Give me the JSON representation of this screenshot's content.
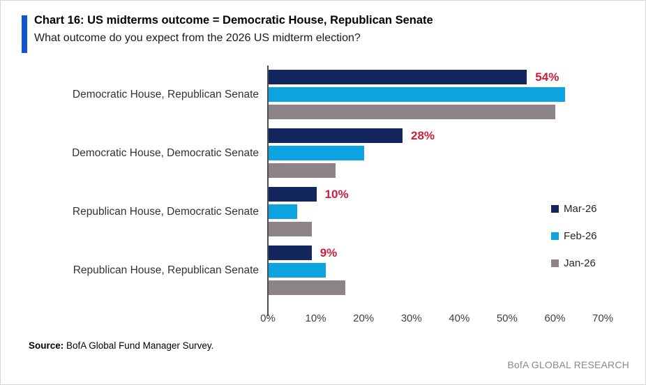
{
  "header": {
    "title": "Chart 16: US midterms outcome = Democratic House, Republican Senate",
    "subtitle": "What outcome do you expect from the 2026 US midterm election?"
  },
  "chart_data": {
    "type": "bar",
    "orientation": "horizontal",
    "title": "Chart 16: US midterms outcome = Democratic House, Republican Senate",
    "subtitle": "What outcome do you expect from the 2026 US midterm election?",
    "categories": [
      "Democratic House, Republican Senate",
      "Democratic House, Democratic Senate",
      "Republican House, Democratic Senate",
      "Republican House, Republican Senate"
    ],
    "series": [
      {
        "name": "Mar-26",
        "color": "#14265e",
        "values": [
          54,
          28,
          10,
          9
        ],
        "show_value_labels": true
      },
      {
        "name": "Feb-26",
        "color": "#0da2e0",
        "values": [
          62,
          20,
          6,
          12
        ],
        "show_value_labels": false
      },
      {
        "name": "Jan-26",
        "color": "#8c8488",
        "values": [
          60,
          14,
          9,
          16
        ],
        "show_value_labels": false
      }
    ],
    "value_label_suffix": "%",
    "value_label_color": "#cb1e3d",
    "x_ticks": [
      "0%",
      "10%",
      "20%",
      "30%",
      "40%",
      "50%",
      "60%",
      "70%"
    ],
    "xlim": [
      0,
      70
    ],
    "grid": false,
    "legend_position": "right"
  },
  "footer": {
    "source_label": "Source:",
    "source_text": " BofA Global Fund Manager Survey.",
    "brand": "BofA GLOBAL RESEARCH"
  }
}
